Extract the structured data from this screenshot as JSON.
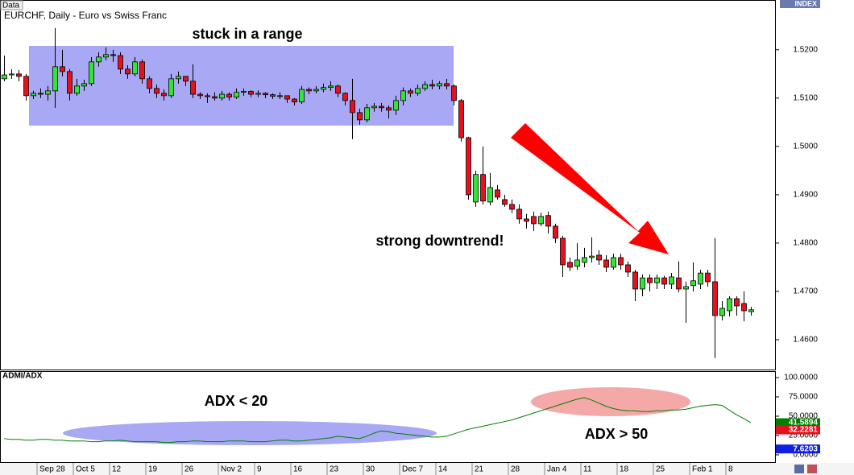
{
  "chart_data": [
    {
      "type": "candlestick",
      "tag": "Data",
      "title": "EURCHF, Daily - Euro vs Swiss Franc",
      "axis_label": "INDEX",
      "categories": [
        null,
        null,
        null,
        null,
        null,
        "Sep 28",
        null,
        null,
        null,
        null,
        "Oct 5",
        null,
        null,
        null,
        null,
        "12",
        null,
        null,
        null,
        null,
        "19",
        null,
        null,
        null,
        null,
        "26",
        null,
        null,
        null,
        null,
        "Nov 2",
        null,
        null,
        null,
        null,
        "9",
        null,
        null,
        null,
        null,
        "16",
        null,
        null,
        null,
        null,
        "23",
        null,
        null,
        null,
        null,
        "30",
        null,
        null,
        null,
        null,
        "Dec 7",
        null,
        null,
        null,
        null,
        "14",
        null,
        null,
        null,
        null,
        "21",
        null,
        null,
        null,
        null,
        "28",
        null,
        null,
        null,
        null,
        "Jan 4",
        null,
        null,
        null,
        null,
        "11",
        null,
        null,
        null,
        null,
        "18",
        null,
        null,
        null,
        null,
        "25",
        null,
        null,
        null,
        null,
        "Feb 1",
        null,
        null,
        null,
        null,
        "8",
        null,
        null,
        null
      ],
      "open": [
        1.514,
        1.5148,
        1.515,
        1.5145,
        1.5105,
        1.511,
        1.5108,
        1.5115,
        1.5165,
        1.5155,
        1.511,
        1.5125,
        1.513,
        1.5175,
        1.5185,
        1.519,
        1.5188,
        1.516,
        1.515,
        1.5175,
        1.514,
        1.512,
        1.511,
        1.5105,
        1.514,
        1.5145,
        1.5135,
        1.5108,
        1.5105,
        1.5103,
        1.51,
        1.5108,
        1.5102,
        1.5112,
        1.5114,
        1.5108,
        1.511,
        1.5107,
        1.5104,
        1.5105,
        1.5098,
        1.5092,
        1.5118,
        1.5115,
        1.5118,
        1.5122,
        1.5125,
        1.511,
        1.5095,
        1.507,
        1.5055,
        1.508,
        1.5083,
        1.508,
        1.5075,
        1.5095,
        1.5115,
        1.511,
        1.512,
        1.5128,
        1.5125,
        1.513,
        1.5125,
        1.5095,
        1.5018,
        1.4885,
        1.4942,
        1.4885,
        1.491,
        1.489,
        1.488,
        1.487,
        1.485,
        1.4855,
        1.484,
        1.4857,
        1.4835,
        1.481,
        1.476,
        1.4752,
        1.476,
        1.477,
        1.4775,
        1.4765,
        1.475,
        1.477,
        1.4755,
        1.474,
        1.4705,
        1.4728,
        1.4718,
        1.4728,
        1.4715,
        1.4728,
        1.4705,
        1.4712,
        1.4715,
        1.4738,
        1.472,
        1.465,
        1.466,
        1.4685,
        1.4675,
        1.4658
      ],
      "high": [
        1.5188,
        1.516,
        1.5158,
        1.515,
        1.5115,
        1.512,
        1.5125,
        1.5245,
        1.52,
        1.516,
        1.514,
        1.5138,
        1.5185,
        1.5195,
        1.5205,
        1.52,
        1.5195,
        1.5168,
        1.5185,
        1.518,
        1.5145,
        1.5128,
        1.5118,
        1.515,
        1.5155,
        1.5145,
        1.517,
        1.5112,
        1.511,
        1.5112,
        1.5115,
        1.5112,
        1.512,
        1.512,
        1.5116,
        1.5116,
        1.5112,
        1.511,
        1.5112,
        1.5105,
        1.51,
        1.5125,
        1.5122,
        1.5125,
        1.513,
        1.5135,
        1.5128,
        1.5112,
        1.514,
        1.5078,
        1.5088,
        1.509,
        1.509,
        1.5085,
        1.5105,
        1.5122,
        1.512,
        1.5128,
        1.5135,
        1.5138,
        1.5135,
        1.514,
        1.5128,
        1.5098,
        1.502,
        1.495,
        1.5,
        1.4945,
        1.492,
        1.49,
        1.489,
        1.488,
        1.486,
        1.4865,
        1.4863,
        1.4865,
        1.484,
        1.4815,
        1.477,
        1.48,
        1.479,
        1.4812,
        1.4785,
        1.4775,
        1.4778,
        1.4778,
        1.4762,
        1.4745,
        1.4735,
        1.4735,
        1.4735,
        1.4732,
        1.4738,
        1.4762,
        1.472,
        1.476,
        1.4745,
        1.4745,
        1.481,
        1.468,
        1.469,
        1.469,
        1.47,
        1.4668
      ],
      "low": [
        1.5135,
        1.514,
        1.5135,
        1.5095,
        1.5098,
        1.51,
        1.5095,
        1.508,
        1.5145,
        1.5095,
        1.5105,
        1.5115,
        1.5125,
        1.5165,
        1.5178,
        1.5175,
        1.515,
        1.514,
        1.5145,
        1.513,
        1.511,
        1.51,
        1.5095,
        1.51,
        1.513,
        1.5125,
        1.51,
        1.5098,
        1.509,
        1.5095,
        1.5095,
        1.5095,
        1.5098,
        1.5105,
        1.5102,
        1.5102,
        1.51,
        1.5098,
        1.5098,
        1.509,
        1.5085,
        1.5088,
        1.5108,
        1.511,
        1.5112,
        1.5115,
        1.5102,
        1.5085,
        1.5015,
        1.5045,
        1.505,
        1.5072,
        1.5072,
        1.5058,
        1.5065,
        1.5085,
        1.5102,
        1.5105,
        1.5115,
        1.5118,
        1.5118,
        1.5118,
        1.5085,
        1.501,
        1.489,
        1.4875,
        1.488,
        1.4878,
        1.489,
        1.4875,
        1.4862,
        1.484,
        1.483,
        1.4825,
        1.4835,
        1.482,
        1.48,
        1.473,
        1.4742,
        1.4745,
        1.475,
        1.476,
        1.4755,
        1.474,
        1.4745,
        1.4745,
        1.473,
        1.468,
        1.469,
        1.47,
        1.4705,
        1.4705,
        1.4705,
        1.4698,
        1.4635,
        1.47,
        1.4705,
        1.471,
        1.4562,
        1.464,
        1.4648,
        1.465,
        1.4638,
        1.465
      ],
      "close": [
        1.5148,
        1.515,
        1.5145,
        1.5105,
        1.511,
        1.5108,
        1.5115,
        1.5165,
        1.5155,
        1.511,
        1.5125,
        1.513,
        1.5175,
        1.5185,
        1.519,
        1.5188,
        1.516,
        1.515,
        1.5175,
        1.514,
        1.512,
        1.511,
        1.5105,
        1.514,
        1.5145,
        1.5135,
        1.5108,
        1.5105,
        1.5103,
        1.51,
        1.5108,
        1.5102,
        1.5112,
        1.5114,
        1.5108,
        1.511,
        1.5107,
        1.5104,
        1.5105,
        1.5098,
        1.5092,
        1.5118,
        1.5115,
        1.5118,
        1.5122,
        1.5125,
        1.511,
        1.5095,
        1.507,
        1.5055,
        1.508,
        1.5083,
        1.508,
        1.5075,
        1.5095,
        1.5115,
        1.511,
        1.512,
        1.5128,
        1.5125,
        1.513,
        1.5125,
        1.5095,
        1.5018,
        1.49,
        1.4942,
        1.4887,
        1.4915,
        1.4895,
        1.488,
        1.487,
        1.485,
        1.4845,
        1.484,
        1.4855,
        1.4835,
        1.481,
        1.4755,
        1.475,
        1.4765,
        1.477,
        1.4773,
        1.4765,
        1.475,
        1.477,
        1.4755,
        1.474,
        1.4705,
        1.4728,
        1.4718,
        1.4728,
        1.4715,
        1.473,
        1.4705,
        1.471,
        1.4722,
        1.4738,
        1.472,
        1.465,
        1.4665,
        1.4685,
        1.467,
        1.466,
        1.4662
      ],
      "up_color": "#33e633",
      "down_color": "#e8101c",
      "ylim": [
        1.454,
        1.5303
      ],
      "yticks": [
        {
          "value": 1.52,
          "label": "1.5200"
        },
        {
          "value": 1.51,
          "label": "1.5100"
        },
        {
          "value": 1.5,
          "label": "1.5000"
        },
        {
          "value": 1.49,
          "label": "1.4900"
        },
        {
          "value": 1.48,
          "label": "1.4800"
        },
        {
          "value": 1.47,
          "label": "1.4700"
        },
        {
          "value": 1.46,
          "label": "1.4600"
        }
      ],
      "annotations": [
        "stuck in a range",
        "strong downtrend!"
      ]
    },
    {
      "type": "line",
      "title": "ADMI/ADX",
      "series": [
        {
          "color": "#008000",
          "values": [
            21,
            20,
            20,
            19,
            19,
            20,
            20,
            19,
            19,
            18,
            18,
            18,
            17,
            17,
            18,
            18,
            19,
            18,
            17,
            17,
            17,
            17,
            16,
            16,
            17,
            17,
            18,
            18,
            17,
            17,
            17,
            18,
            18,
            18,
            17,
            17,
            17,
            18,
            19,
            19,
            18,
            18,
            19,
            20,
            21,
            22,
            24,
            23,
            22,
            21,
            24,
            28,
            31,
            30,
            28,
            27,
            26,
            25,
            24,
            23,
            23,
            24,
            27,
            30,
            33,
            35,
            37,
            39,
            41,
            43,
            45,
            48,
            51,
            54,
            57,
            60,
            63,
            66,
            69,
            72,
            74,
            71,
            67,
            63,
            60,
            58,
            57,
            57,
            56,
            56,
            57,
            57,
            58,
            58,
            59,
            61,
            63,
            64,
            65,
            64,
            58,
            52,
            47,
            41.5894
          ]
        }
      ],
      "readouts": [
        {
          "value": 41.5894,
          "label": "41.5894",
          "color": "#008000"
        },
        {
          "value": 32.2281,
          "label": "32.2281",
          "color": "#e8101c"
        },
        {
          "value": 7.6203,
          "label": "7.6203",
          "color": "#1020e0"
        }
      ],
      "ylim": [
        -9.4,
        108.3
      ],
      "yticks": [
        {
          "value": 100,
          "label": "100.0000"
        },
        {
          "value": 75,
          "label": "75.0000"
        },
        {
          "value": 50,
          "label": "50.0000"
        },
        {
          "value": 25,
          "label": "25.0000"
        },
        {
          "value": 0,
          "label": "0.0000"
        }
      ],
      "annotations": [
        "ADX < 20",
        "ADX > 50"
      ]
    }
  ]
}
